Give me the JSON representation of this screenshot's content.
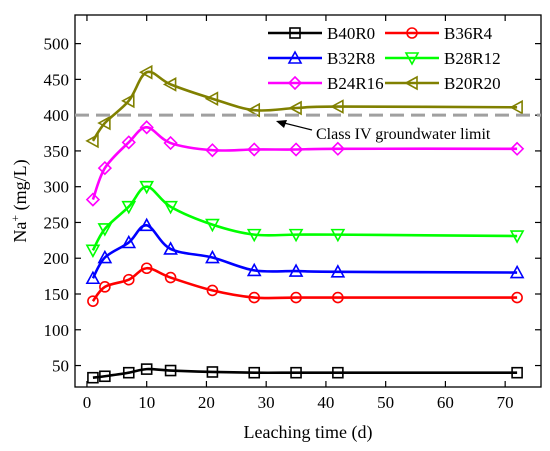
{
  "chart_data": {
    "type": "line",
    "xlabel": "Leaching time (d)",
    "ylabel": "Na",
    "ylabel_superscript": "+",
    "ylabel_unit": " (mg/L)",
    "xlim": [
      -2,
      76
    ],
    "ylim": [
      20,
      540
    ],
    "xticks": [
      0,
      10,
      20,
      30,
      40,
      50,
      60,
      70
    ],
    "yticks": [
      50,
      100,
      150,
      200,
      250,
      300,
      350,
      400,
      450,
      500
    ],
    "legend_position": "top-right",
    "x": [
      1,
      3,
      7,
      10,
      14,
      21,
      28,
      35,
      42,
      72
    ],
    "series": [
      {
        "name": "B40R0",
        "color": "#000000",
        "marker": "square",
        "values": [
          33,
          35,
          40,
          45,
          43,
          41,
          40,
          40,
          40,
          40
        ]
      },
      {
        "name": "B36R4",
        "color": "#ff0000",
        "marker": "circle",
        "values": [
          140,
          160,
          170,
          186,
          173,
          155,
          145,
          145,
          145,
          145
        ]
      },
      {
        "name": "B32R8",
        "color": "#0000ff",
        "marker": "triangle-up",
        "values": [
          172,
          201,
          222,
          246,
          213,
          201,
          183,
          182,
          181,
          180
        ]
      },
      {
        "name": "B28R12",
        "color": "#00ff00",
        "marker": "triangle-down",
        "values": [
          211,
          241,
          272,
          300,
          272,
          247,
          233,
          233,
          233,
          231
        ]
      },
      {
        "name": "B24R16",
        "color": "#ff00ff",
        "marker": "diamond",
        "values": [
          282,
          326,
          362,
          383,
          361,
          351,
          352,
          352,
          353,
          353
        ]
      },
      {
        "name": "B20R20",
        "color": "#808000",
        "marker": "triangle-left",
        "values": [
          364,
          389,
          420,
          460,
          443,
          423,
          407,
          410,
          412,
          411
        ]
      }
    ],
    "reference_line": {
      "y": 400,
      "color": "#a0a0a0",
      "label": "Class IV groundwater limit"
    }
  }
}
